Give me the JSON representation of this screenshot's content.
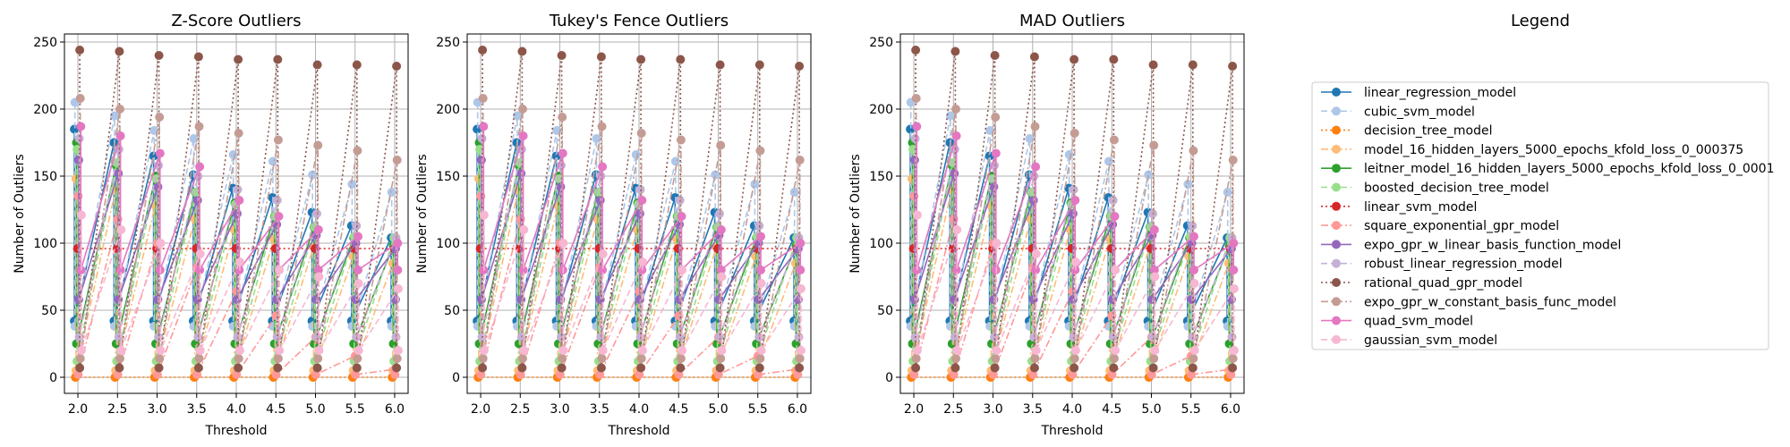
{
  "chart_data": [
    {
      "type": "line",
      "title": "Z-Score Outliers",
      "xlabel": "Threshold",
      "ylabel": "Number of Outliers",
      "x": [
        2.0,
        2.5,
        3.0,
        3.5,
        4.0,
        4.5,
        5.0,
        5.5,
        6.0
      ],
      "xticks": [
        "2.0",
        "2.5",
        "3.0",
        "3.5",
        "4.0",
        "4.5",
        "5.0",
        "5.5",
        "6.0"
      ],
      "xlim": [
        1.83,
        6.17
      ],
      "ylim": [
        -12,
        256
      ],
      "yticks": [
        0,
        50,
        100,
        150,
        200,
        250
      ],
      "grid": true
    },
    {
      "type": "line",
      "title": "Tukey's Fence Outliers",
      "xlabel": "Threshold",
      "ylabel": "Number of Outliers",
      "x": [
        2.0,
        2.5,
        3.0,
        3.5,
        4.0,
        4.5,
        5.0,
        5.5,
        6.0
      ],
      "xticks": [
        "2.0",
        "2.5",
        "3.0",
        "3.5",
        "4.0",
        "4.5",
        "5.0",
        "5.5",
        "6.0"
      ],
      "xlim": [
        1.83,
        6.17
      ],
      "ylim": [
        -12,
        256
      ],
      "yticks": [
        0,
        50,
        100,
        150,
        200,
        250
      ],
      "grid": true
    },
    {
      "type": "line",
      "title": "MAD Outliers",
      "xlabel": "Threshold",
      "ylabel": "Number of Outliers",
      "x": [
        2.0,
        2.5,
        3.0,
        3.5,
        4.0,
        4.5,
        5.0,
        5.5,
        6.0
      ],
      "xticks": [
        "2.0",
        "2.5",
        "3.0",
        "3.5",
        "4.0",
        "4.5",
        "5.0",
        "5.5",
        "6.0"
      ],
      "xlim": [
        1.83,
        6.17
      ],
      "ylim": [
        -12,
        256
      ],
      "yticks": [
        0,
        50,
        100,
        150,
        200,
        250
      ],
      "grid": true
    }
  ],
  "series": [
    {
      "name": "linear_regression_model",
      "color": "#1f77b4",
      "dash": "solid",
      "top": [
        185,
        175,
        165,
        151,
        141,
        134,
        123,
        113,
        104
      ],
      "bottom": 42
    },
    {
      "name": "cubic_svm_model",
      "color": "#aec7e8",
      "dash": "dashed",
      "top": [
        205,
        195,
        184,
        178,
        166,
        161,
        151,
        144,
        138
      ],
      "bottom": 38
    },
    {
      "name": "decision_tree_model",
      "color": "#ff7f0e",
      "dash": "dotted",
      "top": [
        0,
        0,
        0,
        0,
        0,
        0,
        0,
        0,
        0
      ],
      "bottom": 0
    },
    {
      "name": "model_16_hidden_layers_5000_epochs_kfold_loss_0_000375",
      "color": "#ffbb78",
      "dash": "dashdot",
      "top": [
        148,
        140,
        128,
        118,
        110,
        103,
        97,
        90,
        85
      ],
      "bottom": 5
    },
    {
      "name": "leitner_model_16_hidden_layers_5000_epochs_kfold_loss_0_0001",
      "color": "#2ca02c",
      "dash": "solid",
      "top": [
        175,
        158,
        150,
        138,
        130,
        120,
        112,
        104,
        98
      ],
      "bottom": 25
    },
    {
      "name": "boosted_decision_tree_model",
      "color": "#98df8a",
      "dash": "dashed",
      "top": [
        170,
        160,
        148,
        138,
        129,
        120,
        112,
        105,
        104
      ],
      "bottom": 12
    },
    {
      "name": "linear_svm_model",
      "color": "#d62728",
      "dash": "dotted",
      "top": [
        96,
        96,
        96,
        96,
        96,
        96,
        96,
        96,
        96
      ],
      "bottom": 96
    },
    {
      "name": "square_exponential_gpr_model",
      "color": "#ff9896",
      "dash": "dashdot",
      "top": [
        135,
        118,
        100,
        82,
        64,
        46,
        30,
        16,
        6
      ],
      "bottom": 2
    },
    {
      "name": "expo_gpr_w_linear_basis_function_model",
      "color": "#9467bd",
      "dash": "solid",
      "top": [
        162,
        152,
        142,
        132,
        122,
        114,
        106,
        100,
        96
      ],
      "bottom": 58
    },
    {
      "name": "robust_linear_regression_model",
      "color": "#c5b0d5",
      "dash": "dashed",
      "top": [
        178,
        170,
        158,
        150,
        140,
        132,
        122,
        113,
        104
      ],
      "bottom": 30
    },
    {
      "name": "rational_quad_gpr_model",
      "color": "#8c564b",
      "dash": "dotted",
      "top": [
        244,
        243,
        240,
        239,
        237,
        237,
        233,
        233,
        232
      ],
      "bottom": 7
    },
    {
      "name": "expo_gpr_w_constant_basis_func_model",
      "color": "#c49c94",
      "dash": "dashdot",
      "top": [
        208,
        200,
        194,
        187,
        182,
        177,
        173,
        169,
        162
      ],
      "bottom": 14
    },
    {
      "name": "quad_svm_model",
      "color": "#e377c2",
      "dash": "solid",
      "top": [
        187,
        180,
        167,
        157,
        132,
        120,
        110,
        105,
        100
      ],
      "bottom": 80
    },
    {
      "name": "gaussian_svm_model",
      "color": "#f7b6d2",
      "dash": "dashed",
      "top": [
        121,
        110,
        100,
        92,
        86,
        80,
        75,
        70,
        66
      ],
      "bottom": 20
    }
  ],
  "legend": {
    "title": "Legend"
  }
}
